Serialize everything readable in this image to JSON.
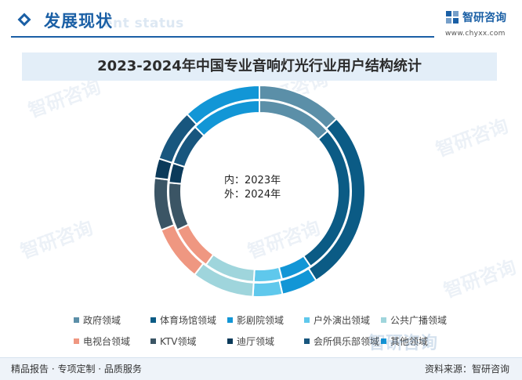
{
  "header": {
    "section_title": "发展现状",
    "section_subtitle": "ent status",
    "brand_name": "智研咨询",
    "brand_url": "www.chyxx.com"
  },
  "watermark": {
    "text": "智研咨询"
  },
  "chart_data": {
    "type": "pie",
    "variant": "double-donut",
    "title": "2023-2024年中国专业音响灯光行业用户结构统计",
    "center_label_inner": "内：2023年",
    "center_label_outer": "外：2024年",
    "legend_placement": "bottom",
    "categories": [
      "政府领域",
      "体育场馆领域",
      "影剧院领域",
      "户外演出领域",
      "公共广播领域",
      "电视台领域",
      "KTV领域",
      "迪厅领域",
      "会所俱乐部领域",
      "其他领域"
    ],
    "colors": [
      "#5b8fa8",
      "#0b5b85",
      "#1296d6",
      "#5fc8ec",
      "#9fd5dc",
      "#ef9781",
      "#3b5565",
      "#0b3a5a",
      "#18567e",
      "#1296d6"
    ],
    "series": [
      {
        "name": "2023年",
        "ring": "inner",
        "values": [
          13.5,
          27,
          5.5,
          5,
          9,
          8,
          8.5,
          3.5,
          7.5,
          12.5
        ]
      },
      {
        "name": "2024年",
        "ring": "outer",
        "values": [
          13,
          28,
          5.5,
          4.5,
          9.5,
          8.5,
          8,
          3,
          8,
          12
        ]
      }
    ]
  },
  "footer": {
    "left_text": "精品报告 · 专项定制 · 品质服务",
    "right_text": "资料来源：智研咨询"
  }
}
